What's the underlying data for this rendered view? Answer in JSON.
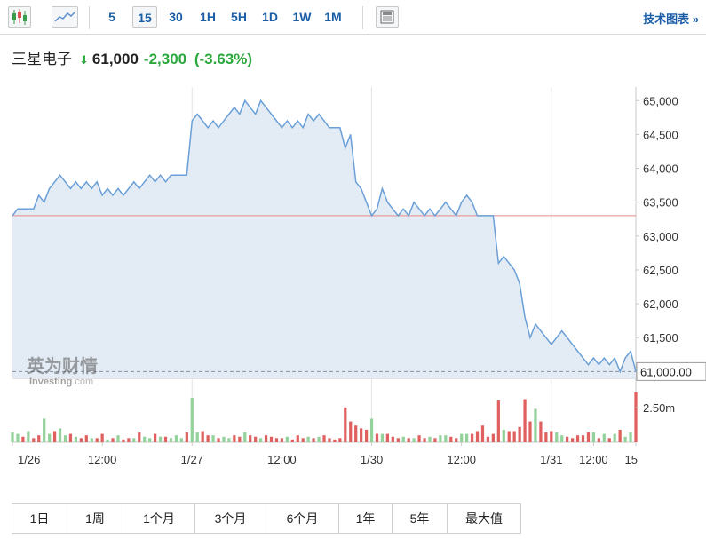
{
  "toolbar": {
    "intervals": [
      "5",
      "15",
      "30",
      "1H",
      "5H",
      "1D",
      "1W",
      "1M"
    ],
    "active_interval": "15",
    "tech_chart_label": "技术图表 »"
  },
  "quote": {
    "name": "三星电子",
    "price": "61,000",
    "change": "-2,300",
    "change_pct": "(-3.63%)"
  },
  "watermark": {
    "cn": "英为财情",
    "en": "Investing",
    "suffix": ".com"
  },
  "colors": {
    "line": "#6a9fd8",
    "area": "#e3ecf4",
    "prev_close": "#e88a8a",
    "up": "#93d39b",
    "down": "#e06060",
    "accent": "#1b5ea6",
    "negative": "#2aa73d"
  },
  "periods": [
    "1日",
    "1周",
    "1个月",
    "3个月",
    "6个月",
    "1年",
    "5年",
    "最大值"
  ],
  "chart_data": {
    "type": "area",
    "y_ticks": [
      "65,000",
      "64,500",
      "64,000",
      "63,500",
      "63,000",
      "62,500",
      "62,000",
      "61,500"
    ],
    "ylim": [
      60900,
      65200
    ],
    "x_ticks": [
      "1/26",
      "12:00",
      "1/27",
      "12:00",
      "1/30",
      "12:00",
      "1/31",
      "12:00",
      "15"
    ],
    "prev_close": 63300,
    "last_price_label": "61,000.00",
    "volume_tick": "2.50m",
    "prices": [
      63300,
      63400,
      63400,
      63400,
      63400,
      63600,
      63500,
      63700,
      63800,
      63900,
      63800,
      63700,
      63800,
      63700,
      63800,
      63700,
      63800,
      63600,
      63700,
      63600,
      63700,
      63600,
      63700,
      63800,
      63700,
      63800,
      63900,
      63800,
      63900,
      63800,
      63900,
      63900,
      63900,
      63900,
      64700,
      64800,
      64700,
      64600,
      64700,
      64600,
      64700,
      64800,
      64900,
      64800,
      65000,
      64900,
      64800,
      65000,
      64900,
      64800,
      64700,
      64600,
      64700,
      64600,
      64700,
      64600,
      64800,
      64700,
      64800,
      64700,
      64600,
      64600,
      64600,
      64300,
      64500,
      63800,
      63700,
      63500,
      63300,
      63400,
      63700,
      63500,
      63400,
      63300,
      63400,
      63300,
      63500,
      63400,
      63300,
      63400,
      63300,
      63400,
      63500,
      63400,
      63300,
      63500,
      63600,
      63500,
      63300,
      63300,
      63300,
      63300,
      62600,
      62700,
      62600,
      62500,
      62300,
      61800,
      61500,
      61700,
      61600,
      61500,
      61400,
      61500,
      61600,
      61500,
      61400,
      61300,
      61200,
      61100,
      61200,
      61100,
      61200,
      61100,
      61200,
      61000,
      61200,
      61300,
      61000
    ],
    "volume_max": 3900000,
    "volumes": [
      700000,
      600000,
      400000,
      800000,
      300000,
      500000,
      1700000,
      600000,
      800000,
      1000000,
      500000,
      600000,
      400000,
      300000,
      500000,
      300000,
      300000,
      600000,
      200000,
      300000,
      500000,
      200000,
      300000,
      300000,
      700000,
      400000,
      300000,
      600000,
      400000,
      400000,
      300000,
      500000,
      300000,
      700000,
      3200000,
      700000,
      800000,
      500000,
      500000,
      300000,
      400000,
      300000,
      500000,
      400000,
      700000,
      500000,
      400000,
      300000,
      500000,
      400000,
      300000,
      300000,
      400000,
      200000,
      500000,
      300000,
      400000,
      300000,
      400000,
      500000,
      300000,
      200000,
      300000,
      2500000,
      1500000,
      1200000,
      1000000,
      900000,
      1700000,
      600000,
      600000,
      600000,
      400000,
      300000,
      400000,
      300000,
      300000,
      500000,
      300000,
      400000,
      300000,
      500000,
      500000,
      400000,
      300000,
      600000,
      600000,
      600000,
      800000,
      1200000,
      400000,
      600000,
      3000000,
      900000,
      800000,
      800000,
      1100000,
      3100000,
      1500000,
      2400000,
      1500000,
      700000,
      800000,
      700000,
      500000,
      400000,
      300000,
      500000,
      500000,
      700000,
      700000,
      300000,
      600000,
      300000,
      600000,
      900000,
      400000,
      700000,
      3600000
    ],
    "volume_up": [
      true,
      true,
      false,
      true,
      false,
      false,
      true,
      true,
      false,
      true,
      true,
      false,
      true,
      false,
      false,
      true,
      false,
      false,
      true,
      false,
      true,
      false,
      false,
      true,
      false,
      true,
      true,
      false,
      true,
      false,
      true,
      true,
      true,
      false,
      true,
      true,
      false,
      false,
      true,
      false,
      true,
      true,
      false,
      false,
      true,
      false,
      false,
      true,
      false,
      false,
      false,
      false,
      true,
      false,
      false,
      false,
      true,
      false,
      true,
      false,
      false,
      false,
      false,
      false,
      false,
      false,
      false,
      false,
      true,
      false,
      true,
      false,
      false,
      false,
      true,
      false,
      true,
      false,
      false,
      true,
      false,
      true,
      true,
      false,
      false,
      true,
      true,
      false,
      false,
      false,
      false,
      false,
      false,
      true,
      false,
      false,
      false,
      false,
      false,
      true,
      false,
      false,
      false,
      true,
      true,
      false,
      false,
      false,
      false,
      false,
      true,
      false,
      true,
      false,
      true,
      false,
      true,
      true,
      false
    ]
  }
}
